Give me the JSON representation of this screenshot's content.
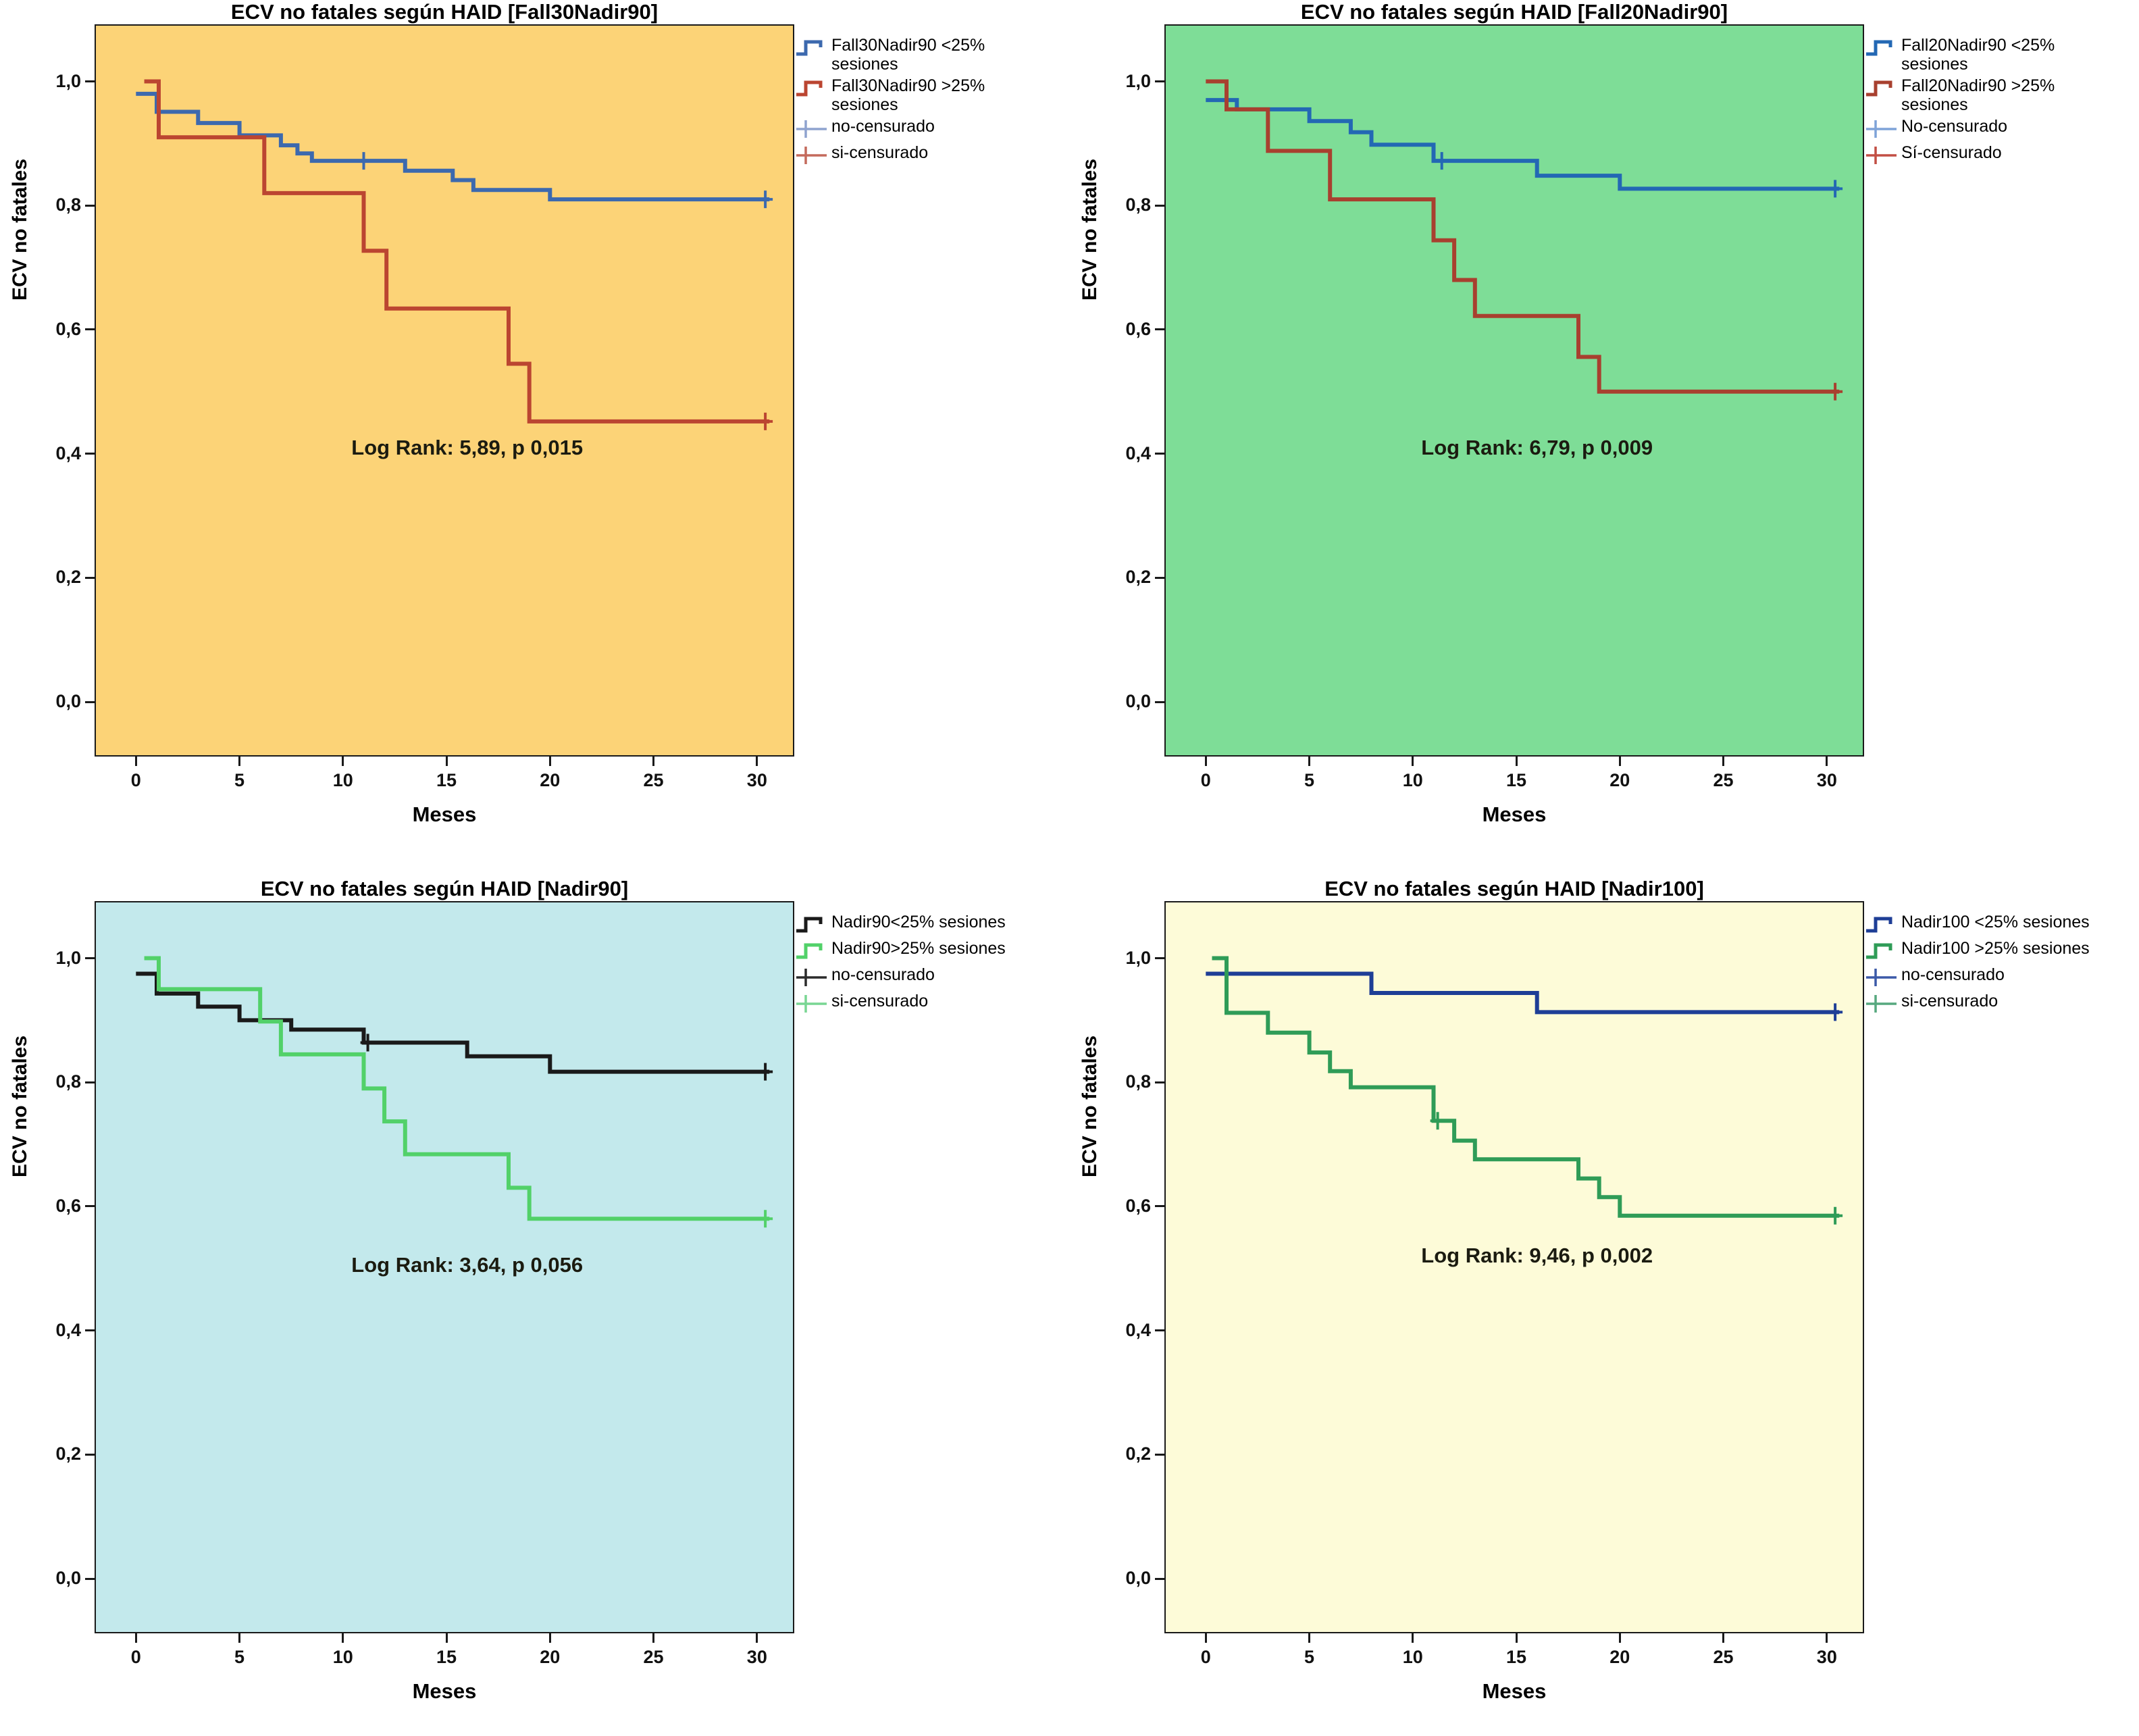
{
  "figure": {
    "xlabel": "Meses",
    "ylabel": "ECV no fatales"
  },
  "chart_data": [
    {
      "type": "line",
      "subtype": "kaplan-meier-step",
      "title": "ECV no fatales según HAID [Fall30Nadir90]",
      "xlabel": "Meses",
      "ylabel": "ECV no fatales",
      "bg": "#FCD377",
      "frame_color": "#1a1a1a",
      "xlim": [
        -2,
        31.8
      ],
      "ylim": [
        -0.088,
        1.092
      ],
      "grid": false,
      "legend_position": "right-top",
      "xticks": [
        {
          "label": "0",
          "v": 0
        },
        {
          "label": "5",
          "v": 5
        },
        {
          "label": "10",
          "v": 10
        },
        {
          "label": "15",
          "v": 15
        },
        {
          "label": "20",
          "v": 20
        },
        {
          "label": "25",
          "v": 25
        },
        {
          "label": "30",
          "v": 30
        }
      ],
      "yticks": [
        {
          "label": "1,0",
          "v": 1.0
        },
        {
          "label": "0,8",
          "v": 0.8
        },
        {
          "label": "0,6",
          "v": 0.6
        },
        {
          "label": "0,4",
          "v": 0.4
        },
        {
          "label": "0,2",
          "v": 0.2
        },
        {
          "label": "0,0",
          "v": 0.0
        }
      ],
      "annotation": {
        "text": "Log Rank: 5,89, p 0,015",
        "x": 16,
        "y": 0.41
      },
      "series": [
        {
          "name": "Fall30Nadir90 <25% sesiones",
          "color": "#3C69AE",
          "points": [
            [
              0,
              0.98
            ],
            [
              1,
              0.951
            ],
            [
              3,
              0.933
            ],
            [
              5,
              0.913
            ],
            [
              7,
              0.897
            ],
            [
              7.8,
              0.884
            ],
            [
              8.5,
              0.872
            ],
            [
              13,
              0.856
            ],
            [
              15.3,
              0.841
            ],
            [
              16.3,
              0.825
            ],
            [
              20,
              0.81
            ],
            [
              30.6,
              0.81
            ]
          ],
          "censors": [
            [
              11,
              0.872
            ],
            [
              30.4,
              0.81
            ]
          ]
        },
        {
          "name": "Fall30Nadir90 >25% sesiones",
          "color": "#BB4531",
          "points": [
            [
              0.4,
              1.0
            ],
            [
              1.1,
              0.91
            ],
            [
              6.2,
              0.82
            ],
            [
              11,
              0.727
            ],
            [
              12.1,
              0.634
            ],
            [
              18,
              0.545
            ],
            [
              19,
              0.452
            ],
            [
              30.6,
              0.452
            ]
          ],
          "censors": [
            [
              30.4,
              0.452
            ]
          ]
        }
      ],
      "legend": [
        {
          "label": "Fall30Nadir90 <25% sesiones",
          "color": "#3C69AE",
          "type": "step"
        },
        {
          "label": "Fall30Nadir90 >25% sesiones",
          "color": "#BB4531",
          "type": "step"
        },
        {
          "label": "no-censurado",
          "color": "#8FA3CF",
          "type": "censor"
        },
        {
          "label": "si-censurado",
          "color": "#C46A5C",
          "type": "censor"
        }
      ]
    },
    {
      "type": "line",
      "subtype": "kaplan-meier-step",
      "title": "ECV no fatales según HAID [Fall20Nadir90]",
      "xlabel": "Meses",
      "ylabel": "ECV no fatales",
      "bg": "#7EDD97",
      "frame_color": "#1a1a1a",
      "xlim": [
        -2,
        31.8
      ],
      "ylim": [
        -0.088,
        1.092
      ],
      "grid": false,
      "legend_position": "right-top",
      "xticks": [
        {
          "label": "0",
          "v": 0
        },
        {
          "label": "5",
          "v": 5
        },
        {
          "label": "10",
          "v": 10
        },
        {
          "label": "15",
          "v": 15
        },
        {
          "label": "20",
          "v": 20
        },
        {
          "label": "25",
          "v": 25
        },
        {
          "label": "30",
          "v": 30
        }
      ],
      "yticks": [
        {
          "label": "1,0",
          "v": 1.0
        },
        {
          "label": "0,8",
          "v": 0.8
        },
        {
          "label": "0,6",
          "v": 0.6
        },
        {
          "label": "0,4",
          "v": 0.4
        },
        {
          "label": "0,2",
          "v": 0.2
        },
        {
          "label": "0,0",
          "v": 0.0
        }
      ],
      "annotation": {
        "text": "Log Rank: 6,79, p 0,009",
        "x": 16,
        "y": 0.41
      },
      "series": [
        {
          "name": "Fall20Nadir90 <25% sesiones",
          "color": "#2368B4",
          "points": [
            [
              0,
              0.97
            ],
            [
              1.5,
              0.955
            ],
            [
              5,
              0.936
            ],
            [
              7,
              0.918
            ],
            [
              8,
              0.898
            ],
            [
              11,
              0.872
            ],
            [
              16,
              0.848
            ],
            [
              20,
              0.827
            ],
            [
              30.6,
              0.827
            ]
          ],
          "censors": [
            [
              11.4,
              0.872
            ],
            [
              30.4,
              0.827
            ]
          ]
        },
        {
          "name": "Fall20Nadir90 >25% sesiones",
          "color": "#A8402F",
          "points": [
            [
              0,
              1.0
            ],
            [
              1,
              0.955
            ],
            [
              3,
              0.888
            ],
            [
              6,
              0.81
            ],
            [
              11,
              0.744
            ],
            [
              12,
              0.68
            ],
            [
              13,
              0.622
            ],
            [
              18,
              0.556
            ],
            [
              19,
              0.5
            ],
            [
              30.6,
              0.5
            ]
          ],
          "censors": [
            [
              30.4,
              0.5
            ]
          ]
        }
      ],
      "legend": [
        {
          "label": "Fall20Nadir90 <25% sesiones",
          "color": "#2368B4",
          "type": "step"
        },
        {
          "label": "Fall20Nadir90 >25% sesiones",
          "color": "#A8402F",
          "type": "step"
        },
        {
          "label": "No-censurado",
          "color": "#7FA3D8",
          "type": "censor"
        },
        {
          "label": "Sí-censurado",
          "color": "#C24F44",
          "type": "censor"
        }
      ]
    },
    {
      "type": "line",
      "subtype": "kaplan-meier-step",
      "title": "ECV no fatales según HAID [Nadir90]",
      "xlabel": "Meses",
      "ylabel": "ECV no fatales",
      "bg": "#C3E9EC",
      "frame_color": "#1a1a1a",
      "xlim": [
        -2,
        31.8
      ],
      "ylim": [
        -0.088,
        1.092
      ],
      "grid": false,
      "legend_position": "right-top",
      "xticks": [
        {
          "label": "0",
          "v": 0
        },
        {
          "label": "5",
          "v": 5
        },
        {
          "label": "10",
          "v": 10
        },
        {
          "label": "15",
          "v": 15
        },
        {
          "label": "20",
          "v": 20
        },
        {
          "label": "25",
          "v": 25
        },
        {
          "label": "30",
          "v": 30
        }
      ],
      "yticks": [
        {
          "label": "1,0",
          "v": 1.0
        },
        {
          "label": "0,8",
          "v": 0.8
        },
        {
          "label": "0,6",
          "v": 0.6
        },
        {
          "label": "0,4",
          "v": 0.4
        },
        {
          "label": "0,2",
          "v": 0.2
        },
        {
          "label": "0,0",
          "v": 0.0
        }
      ],
      "annotation": {
        "text": "Log Rank: 3,64, p 0,056",
        "x": 16,
        "y": 0.505
      },
      "series": [
        {
          "name": "Nadir90<25% sesiones",
          "color": "#1A1A1A",
          "points": [
            [
              0,
              0.975
            ],
            [
              1,
              0.943
            ],
            [
              3,
              0.922
            ],
            [
              5,
              0.9
            ],
            [
              7.5,
              0.885
            ],
            [
              11,
              0.864
            ],
            [
              16,
              0.842
            ],
            [
              20,
              0.817
            ],
            [
              30.6,
              0.817
            ]
          ],
          "censors": [
            [
              11.2,
              0.864
            ],
            [
              30.4,
              0.817
            ]
          ]
        },
        {
          "name": "Nadir90>25% sesiones",
          "color": "#52D169",
          "points": [
            [
              0.4,
              1.0
            ],
            [
              1.1,
              0.95
            ],
            [
              6,
              0.898
            ],
            [
              7,
              0.845
            ],
            [
              11,
              0.79
            ],
            [
              12,
              0.737
            ],
            [
              13,
              0.684
            ],
            [
              18,
              0.63
            ],
            [
              19,
              0.58
            ],
            [
              30.6,
              0.58
            ]
          ],
          "censors": [
            [
              30.4,
              0.58
            ]
          ]
        }
      ],
      "legend": [
        {
          "label": "Nadir90<25% sesiones",
          "color": "#1A1A1A",
          "type": "step"
        },
        {
          "label": "Nadir90>25% sesiones",
          "color": "#52D169",
          "type": "step"
        },
        {
          "label": "no-censurado",
          "color": "#2B2B2B",
          "type": "censor"
        },
        {
          "label": "si-censurado",
          "color": "#79D693",
          "type": "censor"
        }
      ]
    },
    {
      "type": "line",
      "subtype": "kaplan-meier-step",
      "title": "ECV no fatales según HAID [Nadir100]",
      "xlabel": "Meses",
      "ylabel": "ECV no fatales",
      "bg": "#FDFBD8",
      "frame_color": "#1a1a1a",
      "xlim": [
        -2,
        31.8
      ],
      "ylim": [
        -0.088,
        1.092
      ],
      "grid": false,
      "legend_position": "right-top",
      "xticks": [
        {
          "label": "0",
          "v": 0
        },
        {
          "label": "5",
          "v": 5
        },
        {
          "label": "10",
          "v": 10
        },
        {
          "label": "15",
          "v": 15
        },
        {
          "label": "20",
          "v": 20
        },
        {
          "label": "25",
          "v": 25
        },
        {
          "label": "30",
          "v": 30
        }
      ],
      "yticks": [
        {
          "label": "1,0",
          "v": 1.0
        },
        {
          "label": "0,8",
          "v": 0.8
        },
        {
          "label": "0,6",
          "v": 0.6
        },
        {
          "label": "0,4",
          "v": 0.4
        },
        {
          "label": "0,2",
          "v": 0.2
        },
        {
          "label": "0,0",
          "v": 0.0
        }
      ],
      "annotation": {
        "text": "Log Rank: 9,46, p 0,002",
        "x": 16,
        "y": 0.52
      },
      "series": [
        {
          "name": "Nadir100 <25% sesiones",
          "color": "#1E3E96",
          "points": [
            [
              0,
              0.975
            ],
            [
              8,
              0.944
            ],
            [
              16,
              0.913
            ],
            [
              30.6,
              0.913
            ]
          ],
          "censors": [
            [
              30.4,
              0.913
            ]
          ]
        },
        {
          "name": "Nadir100 >25% sesiones",
          "color": "#2F9C57",
          "points": [
            [
              0.3,
              1.0
            ],
            [
              1,
              0.912
            ],
            [
              3,
              0.88
            ],
            [
              5,
              0.848
            ],
            [
              6,
              0.818
            ],
            [
              7,
              0.792
            ],
            [
              11,
              0.738
            ],
            [
              12,
              0.706
            ],
            [
              13,
              0.676
            ],
            [
              18,
              0.645
            ],
            [
              19,
              0.615
            ],
            [
              20,
              0.585
            ],
            [
              30.6,
              0.585
            ]
          ],
          "censors": [
            [
              11.2,
              0.738
            ],
            [
              30.4,
              0.585
            ]
          ]
        }
      ],
      "legend": [
        {
          "label": "Nadir100 <25% sesiones",
          "color": "#1E3E96",
          "type": "step"
        },
        {
          "label": "Nadir100 >25% sesiones",
          "color": "#2F9C57",
          "type": "step"
        },
        {
          "label": "no-censurado",
          "color": "#3C5AA8",
          "type": "censor"
        },
        {
          "label": "si-censurado",
          "color": "#57A87F",
          "type": "censor"
        }
      ]
    }
  ]
}
